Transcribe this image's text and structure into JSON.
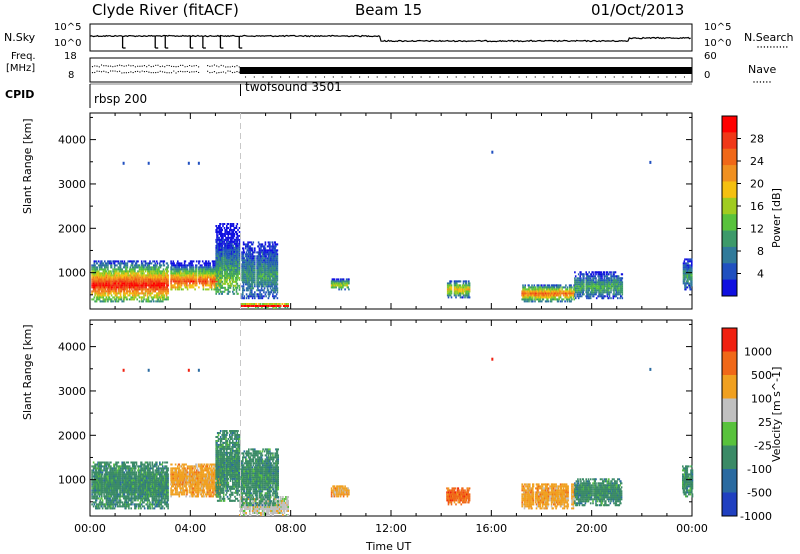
{
  "header": {
    "station": "Clyde River (fitACF)",
    "beam": "Beam 15",
    "date": "01/Oct/2013"
  },
  "sky_panel": {
    "left_label": "N.Sky",
    "right_label": "N.Search",
    "left_ticks": [
      "10^5",
      "10^0"
    ],
    "right_ticks": [
      "10^5",
      "10^0"
    ]
  },
  "freq_panel": {
    "left_label_top": "Freq.",
    "left_label_bottom": "[MHz]",
    "left_ticks": [
      "18",
      "8"
    ],
    "right_label": "Nave",
    "right_ticks": [
      "60",
      "0"
    ]
  },
  "cpid": {
    "label": "CPID",
    "segments": [
      {
        "name": "rbsp 200",
        "start_hour": 0.0
      },
      {
        "name": "twofsound 3501",
        "start_hour": 6.0
      }
    ]
  },
  "chart_data": [
    {
      "type": "heatmap",
      "name": "power",
      "ylabel": "Slant Range [km]",
      "xlabel": "",
      "xlim_hours": [
        0,
        24
      ],
      "ylim": [
        180,
        4600
      ],
      "yticks": [
        "1000",
        "2000",
        "3000",
        "4000"
      ],
      "colorbar": {
        "label": "Power [dB]",
        "ticks": [
          "4",
          "8",
          "12",
          "16",
          "20",
          "24",
          "28"
        ],
        "range": [
          0,
          32
        ],
        "colors": [
          "#1010e0",
          "#2050c0",
          "#307a9a",
          "#3d9a6a",
          "#58c23c",
          "#a0cc20",
          "#f5c010",
          "#f09020",
          "#f06818",
          "#f03818",
          "#ff0000"
        ]
      },
      "scatter_regions": [
        {
          "t0": 0.05,
          "t1": 3.1,
          "r0": 330,
          "r1": 1250,
          "core": 700,
          "level": 30
        },
        {
          "t0": 3.2,
          "t1": 5.2,
          "r0": 600,
          "r1": 1250,
          "core": 780,
          "level": 27
        },
        {
          "t0": 5.0,
          "t1": 5.95,
          "r0": 500,
          "r1": 2100,
          "core": 800,
          "level": 14
        },
        {
          "t0": 5.95,
          "t1": 7.9,
          "r0": 180,
          "r1": 310,
          "core": 230,
          "level": 32
        },
        {
          "t0": 6.0,
          "t1": 7.5,
          "r0": 400,
          "r1": 1700,
          "core": 900,
          "level": 10
        },
        {
          "t0": 9.6,
          "t1": 10.3,
          "r0": 600,
          "r1": 850,
          "core": 700,
          "level": 18
        },
        {
          "t0": 14.2,
          "t1": 15.1,
          "r0": 420,
          "r1": 800,
          "core": 600,
          "level": 20
        },
        {
          "t0": 17.2,
          "t1": 19.3,
          "r0": 330,
          "r1": 700,
          "core": 500,
          "level": 26
        },
        {
          "t0": 19.3,
          "t1": 21.2,
          "r0": 400,
          "r1": 1000,
          "core": 650,
          "level": 12
        },
        {
          "t0": 23.6,
          "t1": 24.0,
          "r0": 600,
          "r1": 1300,
          "core": 900,
          "level": 10
        }
      ]
    },
    {
      "type": "heatmap",
      "name": "velocity",
      "ylabel": "Slant Range [km]",
      "xlabel": "Time UT",
      "xlim_hours": [
        0,
        24
      ],
      "ylim": [
        180,
        4600
      ],
      "yticks": [
        "1000",
        "2000",
        "3000",
        "4000"
      ],
      "xticks": [
        "00:00",
        "04:00",
        "08:00",
        "12:00",
        "16:00",
        "20:00",
        "00:00"
      ],
      "colorbar": {
        "label": "Velocity [m s^-1]",
        "ticks": [
          "1000",
          "500",
          "100",
          "25",
          "-25",
          "-100",
          "-500",
          "-1000"
        ],
        "colors": [
          "#2040c0",
          "#2a6aa0",
          "#3a8a66",
          "#58c23c",
          "#c0c0c0",
          "#f0a020",
          "#f06818",
          "#f02010"
        ]
      },
      "scatter_regions": [
        {
          "t0": 0.05,
          "t1": 3.1,
          "r0": 330,
          "r1": 1400,
          "color": 2
        },
        {
          "t0": 3.2,
          "t1": 5.2,
          "r0": 600,
          "r1": 1350,
          "color": 5
        },
        {
          "t0": 5.0,
          "t1": 5.95,
          "r0": 500,
          "r1": 2100,
          "color": 2
        },
        {
          "t0": 5.95,
          "t1": 7.9,
          "r0": 180,
          "r1": 600,
          "color": 4
        },
        {
          "t0": 6.0,
          "t1": 7.5,
          "r0": 400,
          "r1": 1700,
          "color": 2
        },
        {
          "t0": 9.6,
          "t1": 10.3,
          "r0": 600,
          "r1": 850,
          "color": 5
        },
        {
          "t0": 14.2,
          "t1": 15.1,
          "r0": 420,
          "r1": 800,
          "color": 6
        },
        {
          "t0": 17.2,
          "t1": 19.3,
          "r0": 330,
          "r1": 900,
          "color": 5
        },
        {
          "t0": 19.3,
          "t1": 21.2,
          "r0": 400,
          "r1": 1000,
          "color": 2
        },
        {
          "t0": 23.6,
          "t1": 24.0,
          "r0": 600,
          "r1": 1300,
          "color": 2
        }
      ]
    }
  ]
}
